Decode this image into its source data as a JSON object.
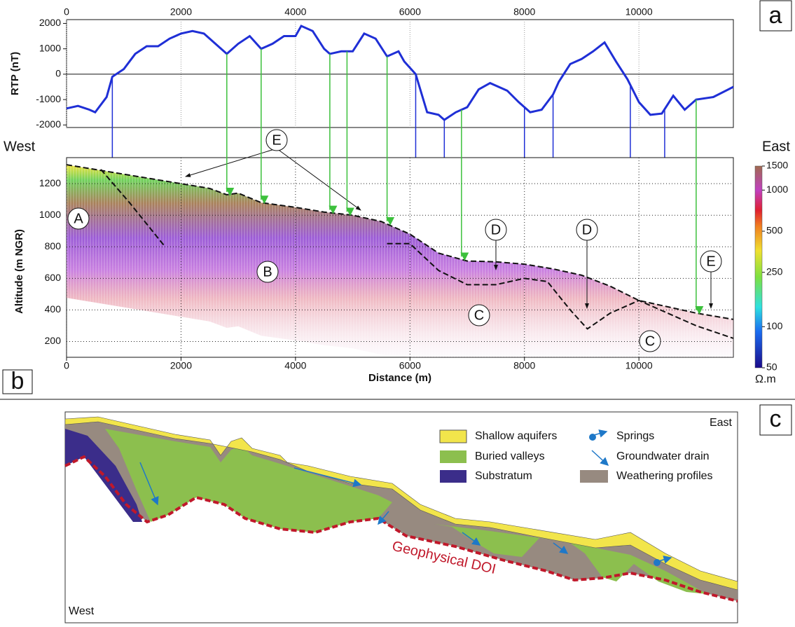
{
  "panel_labels": [
    "a",
    "b",
    "c"
  ],
  "chart_data": [
    {
      "type": "line",
      "y_label": "RTP (nT)",
      "xlim": [
        0,
        11650
      ],
      "xticks": [
        0,
        2000,
        4000,
        6000,
        8000,
        10000
      ],
      "ylim": [
        -2100,
        2150
      ],
      "yticks": [
        -2000,
        -1000,
        0,
        1000,
        2000
      ],
      "grid": true,
      "x": [
        0,
        200,
        400,
        500,
        700,
        800,
        1000,
        1200,
        1400,
        1600,
        1800,
        2000,
        2200,
        2400,
        2600,
        2800,
        3000,
        3200,
        3400,
        3600,
        3800,
        4000,
        4100,
        4300,
        4500,
        4600,
        4800,
        5000,
        5200,
        5400,
        5600,
        5800,
        5900,
        6100,
        6300,
        6500,
        6600,
        6800,
        7000,
        7200,
        7400,
        7700,
        7900,
        8100,
        8300,
        8500,
        8600,
        8800,
        9000,
        9200,
        9400,
        9600,
        9800,
        10000,
        10200,
        10400,
        10600,
        10800,
        11000,
        11300,
        11650
      ],
      "series": [
        {
          "color": "#1f2fd6",
          "values": [
            -1350,
            -1250,
            -1400,
            -1500,
            -900,
            -100,
            200,
            800,
            1100,
            1100,
            1400,
            1600,
            1700,
            1600,
            1200,
            800,
            1200,
            1500,
            1000,
            1200,
            1500,
            1500,
            1900,
            1700,
            1000,
            800,
            900,
            900,
            1600,
            1400,
            700,
            900,
            500,
            0,
            -1500,
            -1600,
            -1800,
            -1500,
            -1300,
            -600,
            -350,
            -650,
            -1100,
            -1500,
            -1400,
            -800,
            -300,
            400,
            600,
            900,
            1250,
            500,
            -200,
            -1100,
            -1600,
            -1550,
            -850,
            -1400,
            -1000,
            -900,
            -500
          ]
        }
      ],
      "blue_lines": [
        800,
        6100,
        6600,
        8000,
        8500,
        9850,
        10450
      ],
      "green_arrows": [
        2800,
        3400,
        4600,
        4900,
        5600,
        6900,
        11000
      ]
    },
    {
      "type": "section",
      "x_label": "Distance (m)",
      "y_label": "Altitude (m NGR)",
      "left_label": "West",
      "right_label": "East",
      "xlim": [
        0,
        11650
      ],
      "xticks": [
        0,
        2000,
        4000,
        6000,
        8000,
        10000
      ],
      "ylim": [
        100,
        1365
      ],
      "yticks": [
        200,
        400,
        600,
        800,
        1000,
        1200
      ],
      "grid": true,
      "surface": {
        "x": [
          0,
          500,
          1000,
          1500,
          2000,
          2500,
          2800,
          3000,
          3400,
          4000,
          4500,
          5000,
          5500,
          6000,
          6500,
          7000,
          7500,
          8000,
          8500,
          9000,
          9500,
          10000,
          10500,
          11000,
          11650
        ],
        "values": [
          1320,
          1290,
          1260,
          1230,
          1200,
          1170,
          1130,
          1140,
          1080,
          1050,
          1020,
          1000,
          960,
          880,
          760,
          710,
          705,
          690,
          660,
          620,
          550,
          460,
          420,
          380,
          340
        ]
      },
      "interpretation": {
        "x": [
          600,
          1100,
          1700,
          1750,
          5600,
          6000,
          6500,
          7000,
          7500,
          8000,
          8400,
          8800,
          9100,
          9500,
          10000,
          10500,
          11000,
          11650
        ],
        "values": [
          1290,
          1080,
          810,
          null,
          820,
          820,
          650,
          560,
          560,
          600,
          580,
          400,
          280,
          380,
          460,
          380,
          300,
          220
        ]
      },
      "colorbar": {
        "range": [
          50,
          1500
        ],
        "ticks": [
          50,
          100,
          250,
          500,
          1000,
          1500
        ],
        "label": "Ω.m",
        "log": true
      },
      "annotations": [
        "A",
        "B",
        "C",
        "C",
        "D",
        "D",
        "E",
        "E"
      ]
    }
  ],
  "diagram": {
    "legend": [
      "Shallow aquifers",
      "Buried valleys",
      "Substratum",
      "Springs",
      "Groundwater drain",
      "Weathering profiles"
    ],
    "east": "East",
    "west": "West",
    "doi": "Geophysical DOI"
  }
}
